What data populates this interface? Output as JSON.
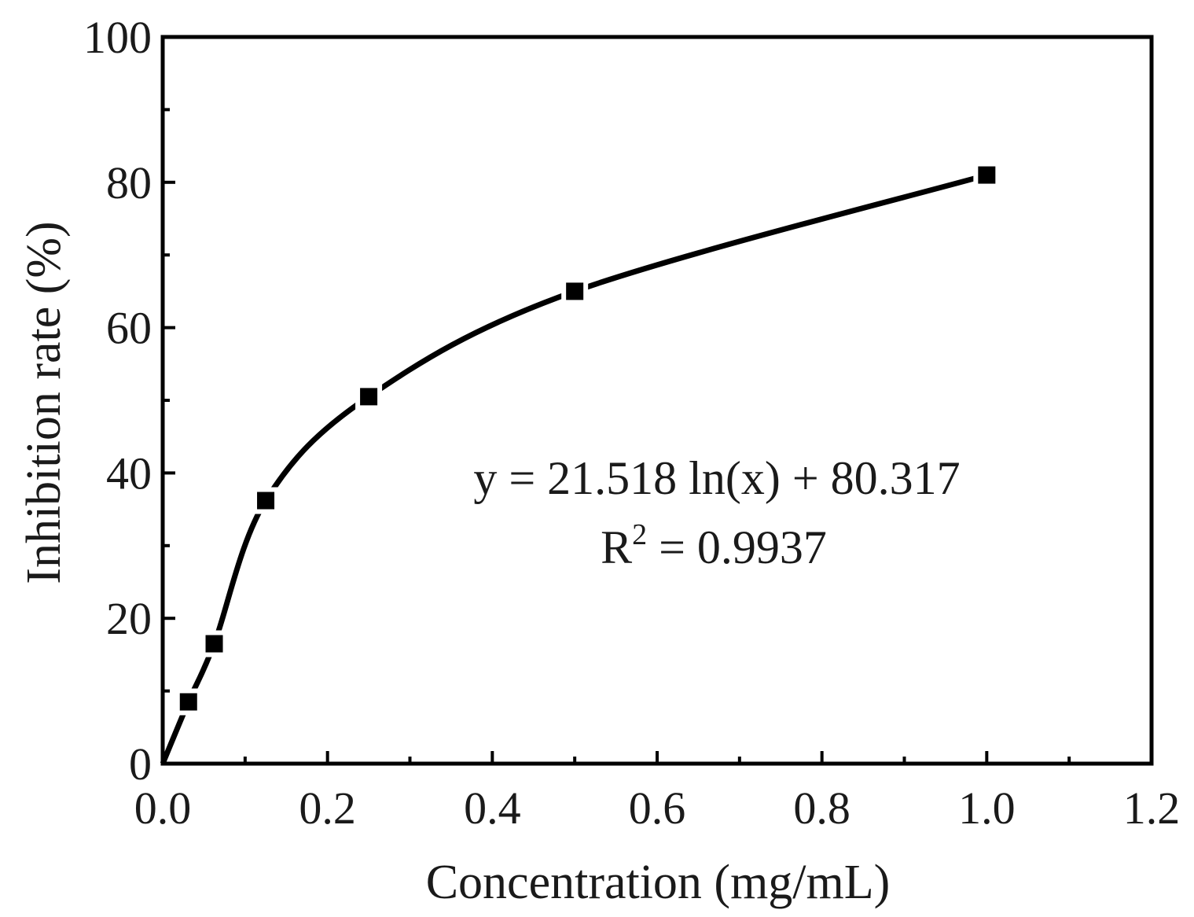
{
  "chart_data": {
    "type": "line",
    "xlabel": "Concentration (mg/mL)",
    "ylabel": "Inhibition rate (%)",
    "xlim": [
      0.0,
      1.2
    ],
    "ylim": [
      0,
      100
    ],
    "x_ticks": [
      "0.0",
      "0.2",
      "0.4",
      "0.6",
      "0.8",
      "1.0",
      "1.2"
    ],
    "y_ticks": [
      "0",
      "20",
      "40",
      "60",
      "80",
      "100"
    ],
    "series": [
      {
        "marker": "square",
        "color": "#000000",
        "x": [
          0.0,
          0.03125,
          0.0625,
          0.125,
          0.25,
          0.5,
          1.0
        ],
        "y": [
          0,
          8.5,
          16.5,
          36.2,
          50.5,
          65.0,
          81.0
        ]
      }
    ],
    "annotations": {
      "equation": "y = 21.518 ln(x) + 80.317",
      "r2_prefix": "R",
      "r2_sup": "2",
      "r2_value": " = 0.9937"
    },
    "grid": false,
    "legend": "none"
  }
}
